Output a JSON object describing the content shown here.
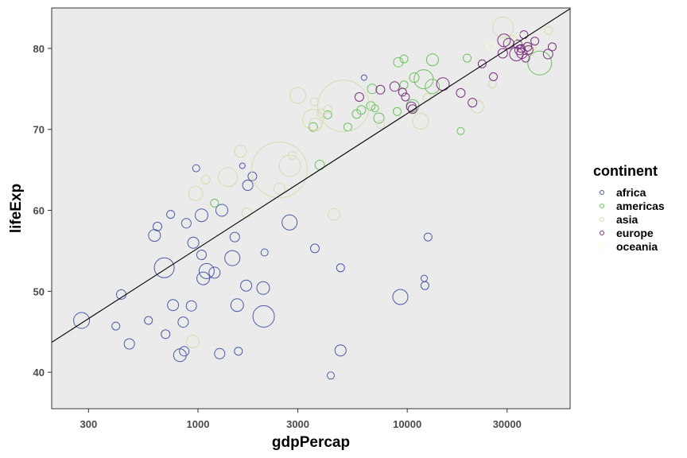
{
  "chart_data": {
    "type": "scatter",
    "title": "",
    "xlabel": "gdpPercap",
    "ylabel": "lifeExp",
    "x_scale": "log10",
    "xlim": [
      200,
      60000
    ],
    "ylim": [
      35.5,
      85
    ],
    "x_ticks": [
      300,
      1000,
      3000,
      10000,
      30000
    ],
    "x_tick_labels": [
      "300",
      "1000",
      "3000",
      "10000",
      "30000"
    ],
    "y_ticks": [
      40,
      50,
      60,
      70,
      80
    ],
    "y_tick_labels": [
      "40",
      "50",
      "60",
      "70",
      "80"
    ],
    "grid": false,
    "panel_background": "#ebebeb",
    "legend": {
      "title": "continent",
      "position": "right"
    },
    "trend_line": {
      "type": "linear fit on log10(x)",
      "points": [
        [
          200,
          43.7
        ],
        [
          60000,
          84.9
        ]
      ],
      "color": "#000000"
    },
    "series": [
      {
        "name": "africa",
        "color": "#4a5aa8",
        "points": [
          [
            278,
            46.4,
            2.0
          ],
          [
            405,
            45.7,
            1.0
          ],
          [
            430,
            49.6,
            1.2
          ],
          [
            470,
            43.5,
            1.3
          ],
          [
            580,
            46.4,
            1.0
          ],
          [
            620,
            56.9,
            1.5
          ],
          [
            640,
            58.0,
            1.1
          ],
          [
            700,
            44.7,
            1.1
          ],
          [
            740,
            59.5,
            1.0
          ],
          [
            690,
            52.9,
            2.5
          ],
          [
            760,
            48.3,
            1.4
          ],
          [
            820,
            42.1,
            1.6
          ],
          [
            860,
            42.6,
            1.2
          ],
          [
            850,
            46.2,
            1.3
          ],
          [
            880,
            58.4,
            1.2
          ],
          [
            930,
            48.2,
            1.3
          ],
          [
            950,
            56.0,
            1.4
          ],
          [
            980,
            65.2,
            0.9
          ],
          [
            1040,
            59.4,
            1.6
          ],
          [
            1040,
            54.5,
            1.2
          ],
          [
            1060,
            51.6,
            1.6
          ],
          [
            1100,
            52.5,
            1.9
          ],
          [
            1200,
            52.3,
            1.4
          ],
          [
            1270,
            42.3,
            1.3
          ],
          [
            1300,
            60.0,
            1.5
          ],
          [
            1460,
            54.1,
            1.9
          ],
          [
            1500,
            56.7,
            1.2
          ],
          [
            1540,
            48.3,
            1.6
          ],
          [
            1560,
            42.6,
            1.0
          ],
          [
            1630,
            65.5,
            0.7
          ],
          [
            1700,
            50.7,
            1.4
          ],
          [
            1730,
            63.1,
            1.3
          ],
          [
            1820,
            64.2,
            1.1
          ],
          [
            2060,
            46.9,
            2.7
          ],
          [
            2050,
            50.4,
            1.6
          ],
          [
            2080,
            54.8,
            0.9
          ],
          [
            2740,
            58.5,
            1.9
          ],
          [
            3620,
            55.3,
            1.1
          ],
          [
            4310,
            39.6,
            0.9
          ],
          [
            4800,
            52.9,
            1.0
          ],
          [
            4800,
            42.7,
            1.4
          ],
          [
            9270,
            49.3,
            1.9
          ],
          [
            12050,
            51.6,
            0.8
          ],
          [
            12150,
            50.7,
            1.0
          ],
          [
            12570,
            56.7,
            1.0
          ],
          [
            6220,
            76.4,
            0.7
          ]
        ]
      },
      {
        "name": "americas",
        "color": "#6cc25e",
        "points": [
          [
            1200,
            60.9,
            1.0
          ],
          [
            3550,
            70.3,
            1.1
          ],
          [
            3820,
            65.6,
            1.2
          ],
          [
            4170,
            71.8,
            1.0
          ],
          [
            5200,
            70.3,
            1.0
          ],
          [
            5730,
            71.9,
            1.1
          ],
          [
            6030,
            72.4,
            1.1
          ],
          [
            6700,
            72.9,
            1.1
          ],
          [
            6800,
            75.0,
            1.2
          ],
          [
            7010,
            72.6,
            0.9
          ],
          [
            7320,
            71.4,
            1.3
          ],
          [
            8950,
            72.2,
            1.0
          ],
          [
            9070,
            78.3,
            1.2
          ],
          [
            9650,
            78.7,
            1.0
          ],
          [
            9650,
            75.5,
            1.0
          ],
          [
            10610,
            72.9,
            1.6
          ],
          [
            10800,
            76.4,
            1.2
          ],
          [
            11980,
            76.2,
            2.4
          ],
          [
            13170,
            75.3,
            1.8
          ],
          [
            13200,
            78.6,
            1.5
          ],
          [
            18000,
            69.8,
            0.9
          ],
          [
            19330,
            78.8,
            1.0
          ],
          [
            42950,
            78.2,
            3.0
          ]
        ]
      },
      {
        "name": "asia",
        "color": "#d6dcaf",
        "points": [
          [
            944,
            43.8,
            1.6
          ],
          [
            1090,
            63.8,
            1.1
          ],
          [
            975,
            62.1,
            1.8
          ],
          [
            1390,
            64.1,
            2.4
          ],
          [
            1600,
            67.3,
            1.5
          ],
          [
            1710,
            59.7,
            1.2
          ],
          [
            2450,
            62.7,
            1.4
          ],
          [
            2450,
            65.0,
            7.0
          ],
          [
            2750,
            65.5,
            2.7
          ],
          [
            2820,
            66.8,
            1.0
          ],
          [
            3000,
            74.2,
            2.0
          ],
          [
            3550,
            71.2,
            2.6
          ],
          [
            3600,
            73.4,
            1.0
          ],
          [
            3640,
            70.6,
            1.6
          ],
          [
            3860,
            72.0,
            1.0
          ],
          [
            4180,
            72.5,
            1.0
          ],
          [
            4470,
            59.5,
            1.5
          ],
          [
            4960,
            72.9,
            6.5
          ],
          [
            7460,
            70.6,
            1.0
          ],
          [
            11600,
            71.0,
            2.0
          ],
          [
            12450,
            73.9,
            1.0
          ],
          [
            21650,
            72.8,
            1.6
          ],
          [
            25520,
            75.6,
            1.0
          ],
          [
            28700,
            82.6,
            2.6
          ],
          [
            31700,
            81.0,
            1.2
          ],
          [
            36320,
            79.9,
            1.1
          ],
          [
            39720,
            80.2,
            0.9
          ],
          [
            47310,
            82.2,
            1.0
          ]
        ]
      },
      {
        "name": "europe",
        "color": "#7a2f7e",
        "points": [
          [
            5900,
            74.0,
            1.1
          ],
          [
            7440,
            74.9,
            1.1
          ],
          [
            8700,
            75.3,
            1.2
          ],
          [
            9500,
            74.6,
            1.0
          ],
          [
            9800,
            74.0,
            1.0
          ],
          [
            10460,
            72.8,
            1.2
          ],
          [
            10600,
            72.5,
            1.1
          ],
          [
            14800,
            75.6,
            1.6
          ],
          [
            18000,
            74.5,
            1.1
          ],
          [
            20500,
            73.3,
            1.1
          ],
          [
            22800,
            78.1,
            1.0
          ],
          [
            25800,
            76.5,
            1.0
          ],
          [
            28600,
            79.4,
            1.2
          ],
          [
            29000,
            81.0,
            1.6
          ],
          [
            30500,
            80.6,
            1.3
          ],
          [
            33200,
            79.3,
            1.7
          ],
          [
            33700,
            80.5,
            1.1
          ],
          [
            34400,
            79.8,
            1.2
          ],
          [
            35300,
            79.4,
            1.3
          ],
          [
            36100,
            81.7,
            1.0
          ],
          [
            37500,
            80.2,
            1.1
          ],
          [
            38000,
            79.8,
            1.1
          ],
          [
            40700,
            80.9,
            1.0
          ],
          [
            47100,
            79.3,
            1.2
          ],
          [
            49300,
            80.2,
            1.0
          ],
          [
            36800,
            78.8,
            1.0
          ],
          [
            35000,
            80.0,
            1.0
          ]
        ]
      },
      {
        "name": "oceania",
        "color": "#fbfccc",
        "points": [
          [
            34400,
            81.2,
            1.2
          ],
          [
            25200,
            80.2,
            1.0
          ]
        ]
      }
    ]
  }
}
